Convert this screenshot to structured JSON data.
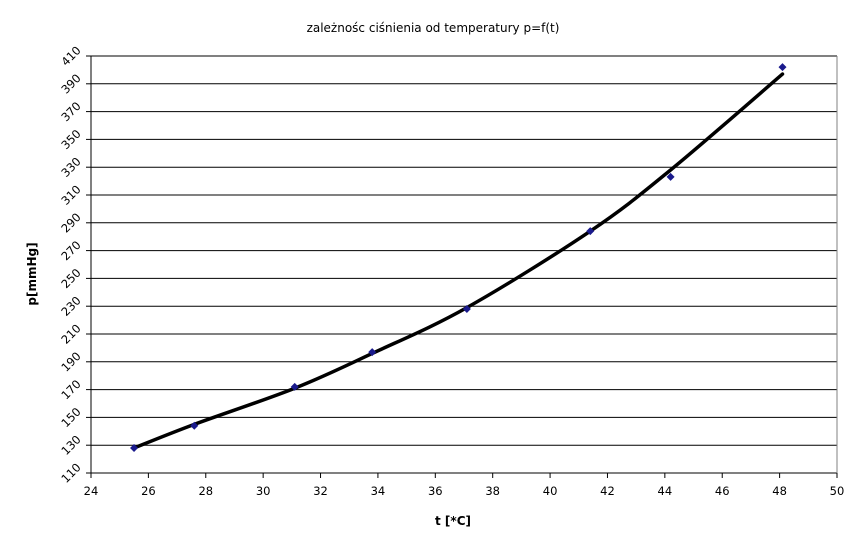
{
  "chart_data": {
    "type": "scatter",
    "title": "zależnośc ciśnienia od temperatury p=f(t)",
    "xlabel": "t [*C]",
    "ylabel": "p[mmHg]",
    "xlim": [
      24,
      50
    ],
    "ylim": [
      110,
      410
    ],
    "x_ticks": [
      24,
      26,
      28,
      30,
      32,
      34,
      36,
      38,
      40,
      42,
      44,
      46,
      48,
      50
    ],
    "y_ticks": [
      110,
      130,
      150,
      170,
      190,
      210,
      230,
      250,
      270,
      290,
      310,
      330,
      350,
      370,
      390,
      410
    ],
    "grid": "horizontal",
    "legend": "none",
    "series": [
      {
        "kind": "points",
        "color": "#1a1a8c",
        "marker": "diamond",
        "x": [
          25.5,
          27.6,
          31.1,
          33.8,
          37.1,
          41.4,
          44.2,
          48.1
        ],
        "y": [
          128,
          144,
          172,
          197,
          228,
          284,
          323,
          402
        ]
      },
      {
        "kind": "trendline",
        "color": "#000000",
        "x": [
          25.5,
          27.6,
          31.1,
          33.8,
          37.1,
          41.4,
          44.2,
          48.1
        ],
        "y": [
          128,
          145,
          171,
          196,
          229,
          284,
          328,
          397
        ]
      }
    ]
  }
}
